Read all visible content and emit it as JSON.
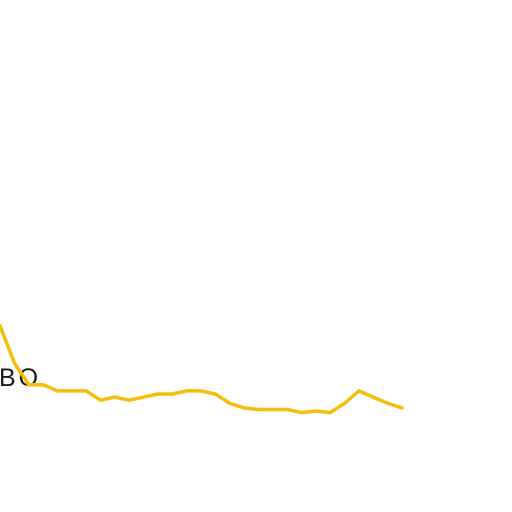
{
  "chart_data": {
    "type": "line",
    "title": "",
    "label": "BO",
    "color": "#f5bd0c",
    "ylim": [
      0,
      100
    ],
    "grid": false,
    "series": [
      {
        "values": [
          82,
          70,
          63,
          63,
          61,
          61,
          61,
          58,
          59,
          58,
          59,
          60,
          60,
          61,
          61,
          60,
          57,
          55.5,
          55,
          55,
          55,
          54,
          54.5,
          54,
          57,
          61,
          59,
          57,
          55.5
        ]
      }
    ]
  }
}
